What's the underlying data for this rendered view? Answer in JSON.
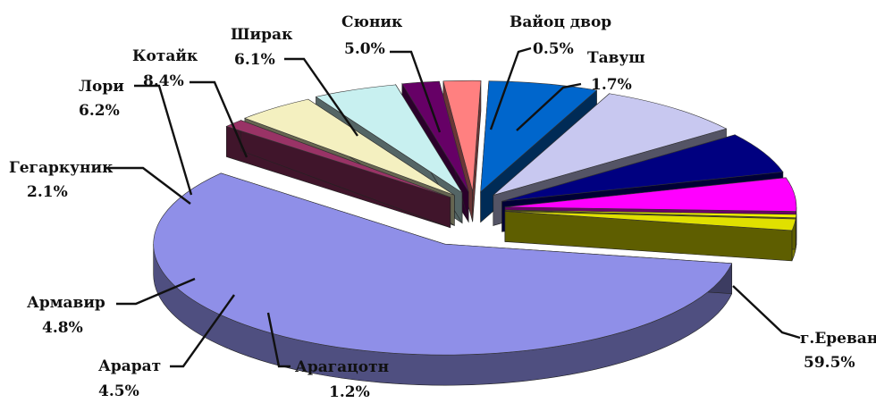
{
  "chart_data": {
    "type": "pie",
    "style": "3d-exploded",
    "title": "",
    "slices": [
      {
        "name": "г.Ереван",
        "value": 59.5,
        "label": "59.5%",
        "color": "#8f8fe8"
      },
      {
        "name": "Арагацотн",
        "value": 1.2,
        "label": "1.2%",
        "color": "#993366"
      },
      {
        "name": "Арарат",
        "value": 4.5,
        "label": "4.5%",
        "color": "#f4f0c0"
      },
      {
        "name": "Армавир",
        "value": 4.8,
        "label": "4.8%",
        "color": "#c8f0f0"
      },
      {
        "name": "",
        "value": 2.1,
        "label": "",
        "color": "#660066"
      },
      {
        "name": "Гегаркуник",
        "value": 2.1,
        "label": "2.1%",
        "color": "#ff8080"
      },
      {
        "name": "Лори",
        "value": 6.2,
        "label": "6.2%",
        "color": "#0066cc"
      },
      {
        "name": "Котайк",
        "value": 8.4,
        "label": "8.4%",
        "color": "#c8c8f0"
      },
      {
        "name": "Ширак",
        "value": 6.1,
        "label": "6.1%",
        "color": "#000080"
      },
      {
        "name": "Сюник",
        "value": 5.0,
        "label": "5.0%",
        "color": "#ff00ff"
      },
      {
        "name": "Вайоц двор",
        "value": 0.5,
        "label": "0.5%",
        "color": "#f0f000"
      },
      {
        "name": "Тавуш",
        "value": 1.7,
        "label": "1.7%",
        "color": "#e0e000"
      }
    ],
    "labels": [
      {
        "name": "г.Ереван",
        "percent": "59.5%"
      },
      {
        "name": "Арагацотн",
        "percent": "1.2%"
      },
      {
        "name": "Арарат",
        "percent": "4.5%"
      },
      {
        "name": "Армавир",
        "percent": "4.8%"
      },
      {
        "name": "Гегаркуник",
        "percent": "2.1%"
      },
      {
        "name": "Лори",
        "percent": "6.2%"
      },
      {
        "name": "Котайк",
        "percent": "8.4%"
      },
      {
        "name": "Ширак",
        "percent": "6.1%"
      },
      {
        "name": "Сюник",
        "percent": "5.0%"
      },
      {
        "name": "Вайоц двор",
        "percent": "0.5%"
      },
      {
        "name": "Тавуш",
        "percent": "1.7%"
      }
    ]
  }
}
